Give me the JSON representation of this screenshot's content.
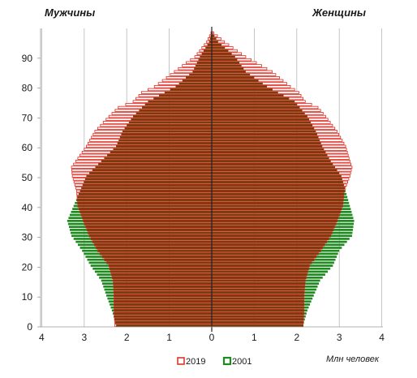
{
  "chart_data": {
    "type": "population-pyramid",
    "titles": {
      "left": "Мужчины",
      "right": "Женщины"
    },
    "unit_label": "Млн человек",
    "x_ticks": [
      "4",
      "3",
      "2",
      "1",
      "0",
      "1",
      "2",
      "3",
      "4"
    ],
    "x_range": [
      -4,
      4
    ],
    "y_ticks": [
      "0",
      "10",
      "20",
      "30",
      "40",
      "50",
      "60",
      "70",
      "80",
      "90"
    ],
    "y_range": [
      0,
      100
    ],
    "grid": "vertical",
    "legend_position": "bottom",
    "series": [
      {
        "name": "2019",
        "style": "outline",
        "color": "#e0261b",
        "male_anchors": [
          [
            0,
            2.28
          ],
          [
            5,
            2.3
          ],
          [
            10,
            2.3
          ],
          [
            15,
            2.32
          ],
          [
            20,
            2.42
          ],
          [
            25,
            2.68
          ],
          [
            30,
            2.88
          ],
          [
            35,
            3.02
          ],
          [
            40,
            3.15
          ],
          [
            45,
            3.18
          ],
          [
            50,
            3.28
          ],
          [
            53,
            3.3
          ],
          [
            55,
            3.2
          ],
          [
            60,
            2.95
          ],
          [
            65,
            2.75
          ],
          [
            70,
            2.42
          ],
          [
            73,
            2.2
          ],
          [
            75,
            1.85
          ],
          [
            78,
            1.65
          ],
          [
            80,
            1.35
          ],
          [
            85,
            0.88
          ],
          [
            88,
            0.6
          ],
          [
            90,
            0.4
          ],
          [
            95,
            0.12
          ],
          [
            98,
            0.02
          ]
        ],
        "female_anchors": [
          [
            0,
            2.15
          ],
          [
            5,
            2.17
          ],
          [
            10,
            2.17
          ],
          [
            15,
            2.2
          ],
          [
            20,
            2.3
          ],
          [
            25,
            2.56
          ],
          [
            30,
            2.8
          ],
          [
            35,
            2.95
          ],
          [
            40,
            3.08
          ],
          [
            45,
            3.12
          ],
          [
            50,
            3.25
          ],
          [
            53,
            3.3
          ],
          [
            55,
            3.25
          ],
          [
            60,
            3.15
          ],
          [
            65,
            2.95
          ],
          [
            70,
            2.68
          ],
          [
            73,
            2.5
          ],
          [
            75,
            2.2
          ],
          [
            78,
            2.05
          ],
          [
            80,
            1.85
          ],
          [
            85,
            1.42
          ],
          [
            88,
            1.05
          ],
          [
            90,
            0.8
          ],
          [
            95,
            0.3
          ],
          [
            98,
            0.05
          ]
        ]
      },
      {
        "name": "2001",
        "style": "filled",
        "color": "#1f8a1f",
        "male_anchors": [
          [
            0,
            2.25
          ],
          [
            5,
            2.35
          ],
          [
            10,
            2.48
          ],
          [
            15,
            2.6
          ],
          [
            20,
            2.85
          ],
          [
            25,
            3.05
          ],
          [
            30,
            3.3
          ],
          [
            35,
            3.4
          ],
          [
            40,
            3.25
          ],
          [
            45,
            3.1
          ],
          [
            50,
            2.95
          ],
          [
            55,
            2.6
          ],
          [
            60,
            2.25
          ],
          [
            65,
            2.1
          ],
          [
            70,
            1.85
          ],
          [
            75,
            1.5
          ],
          [
            80,
            0.85
          ],
          [
            85,
            0.45
          ],
          [
            90,
            0.28
          ],
          [
            95,
            0.06
          ],
          [
            98,
            0.01
          ]
        ],
        "female_anchors": [
          [
            0,
            2.15
          ],
          [
            5,
            2.25
          ],
          [
            10,
            2.4
          ],
          [
            15,
            2.55
          ],
          [
            20,
            2.85
          ],
          [
            25,
            3.0
          ],
          [
            30,
            3.3
          ],
          [
            35,
            3.35
          ],
          [
            40,
            3.25
          ],
          [
            45,
            3.15
          ],
          [
            50,
            3.05
          ],
          [
            55,
            2.8
          ],
          [
            60,
            2.6
          ],
          [
            65,
            2.45
          ],
          [
            70,
            2.25
          ],
          [
            75,
            1.95
          ],
          [
            80,
            1.3
          ],
          [
            85,
            0.8
          ],
          [
            90,
            0.55
          ],
          [
            95,
            0.15
          ],
          [
            98,
            0.02
          ]
        ]
      }
    ]
  }
}
